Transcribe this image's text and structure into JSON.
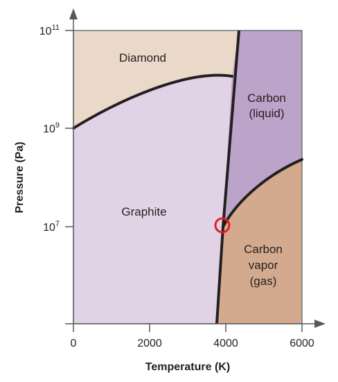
{
  "regions": {
    "diamond": {
      "label": "Diamond",
      "color": "#ead8c8"
    },
    "graphite": {
      "label": "Graphite",
      "color": "#e2d2e6"
    },
    "liquid": {
      "label_line1": "Carbon",
      "label_line2": "(liquid)",
      "color": "#bca3c9"
    },
    "vapor": {
      "label_line1": "Carbon",
      "label_line2": "vapor",
      "label_line3": "(gas)",
      "color": "#d4aa8e"
    }
  },
  "x_axis": {
    "title": "Temperature (K)",
    "ticks": [
      "0",
      "2000",
      "4000",
      "6000"
    ]
  },
  "y_axis": {
    "title": "Pressure (Pa)",
    "ticks": [
      {
        "base": "10",
        "exp": "7"
      },
      {
        "base": "10",
        "exp": "9"
      },
      {
        "base": "10",
        "exp": "11"
      }
    ]
  },
  "colors": {
    "boundary": "#231f20",
    "axis": "#58595b",
    "triple_point_marker": "#e31e24"
  }
}
